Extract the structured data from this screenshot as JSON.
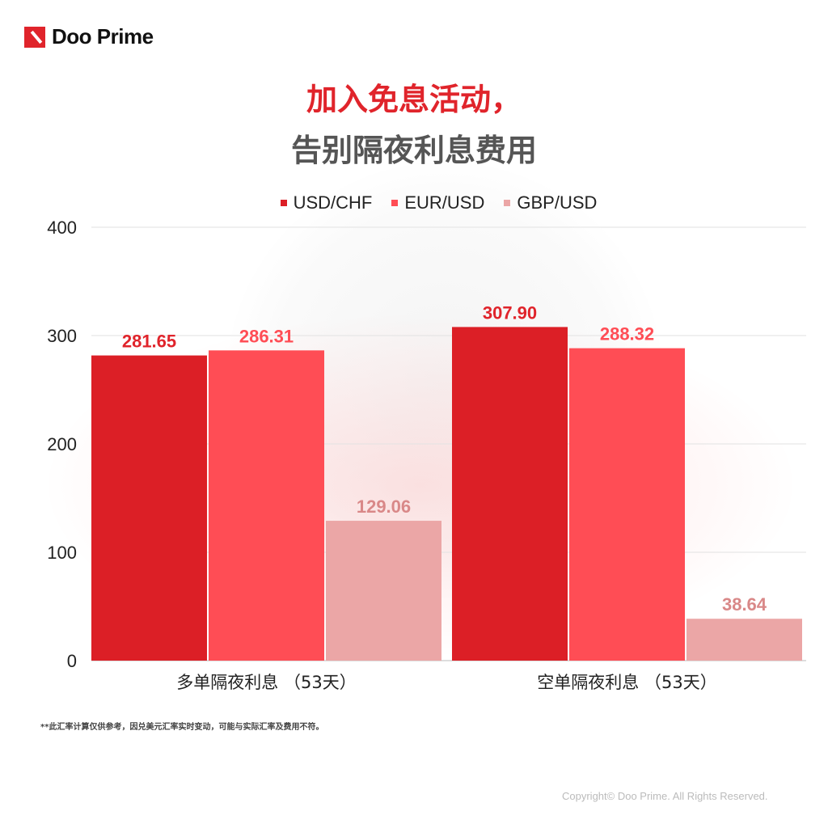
{
  "brand": {
    "name": "Doo Prime",
    "color": "#e0242b"
  },
  "title_line1": "加入免息活动，",
  "title_line2": "告别隔夜利息费用",
  "footnote": "**此汇率计算仅供参考，因兑美元汇率实时变动，可能与实际汇率及费用不符。",
  "copyright": "Copyright© Doo Prime. All Rights Reserved.",
  "chart_data": {
    "type": "bar",
    "categories": [
      "多单隔夜利息 （53天）",
      "空单隔夜利息 （53天）"
    ],
    "series": [
      {
        "name": "USD/CHF",
        "color": "#dc1f26",
        "label_color": "#e0242b",
        "values": [
          281.65,
          307.9
        ]
      },
      {
        "name": "EUR/USD",
        "color": "#ff4d55",
        "label_color": "#ff4d55",
        "values": [
          286.31,
          288.32
        ]
      },
      {
        "name": "GBP/USD",
        "color": "#eba6a6",
        "label_color": "#d98888",
        "values": [
          129.06,
          38.64
        ]
      }
    ],
    "value_labels": [
      [
        "281.65",
        "307.90"
      ],
      [
        "286.31",
        "288.32"
      ],
      [
        "129.06",
        "38.64"
      ]
    ],
    "yticks": [
      "0",
      "100",
      "200",
      "300",
      "400"
    ],
    "ylim": [
      0,
      400
    ],
    "grid": true,
    "legend": "top-center"
  }
}
